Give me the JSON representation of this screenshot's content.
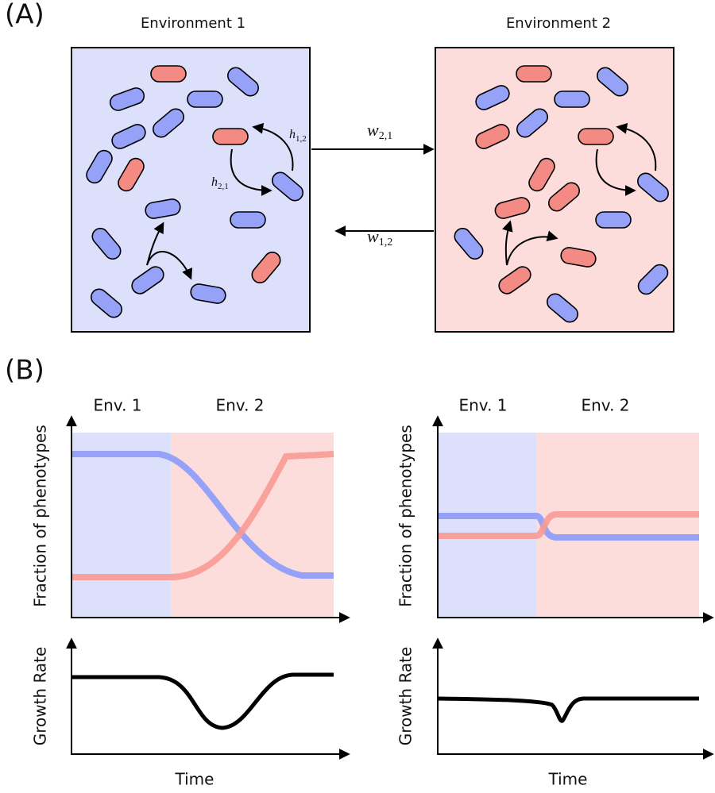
{
  "panel_a": {
    "label": "(A)",
    "environments": [
      "Environment 1",
      "Environment 2"
    ],
    "switch_rates": [
      {
        "symbol": "w",
        "subscript": "2,1"
      },
      {
        "symbol": "w",
        "subscript": "1,2"
      }
    ],
    "phenotype_rates": [
      {
        "symbol": "h",
        "subscript": "1,2"
      },
      {
        "symbol": "h",
        "subscript": "2,1"
      }
    ]
  },
  "panel_b": {
    "label": "(B)",
    "plots": [
      {
        "env_labels": [
          "Env. 1",
          "Env. 2"
        ],
        "fraction_ylabel": "Fraction of phenotypes",
        "growth_ylabel": "Growth Rate",
        "xlabel": "Time"
      },
      {
        "env_labels": [
          "Env. 1",
          "Env. 2"
        ],
        "fraction_ylabel": "Fraction of phenotypes",
        "growth_ylabel": "Growth Rate",
        "xlabel": "Time"
      }
    ]
  }
}
